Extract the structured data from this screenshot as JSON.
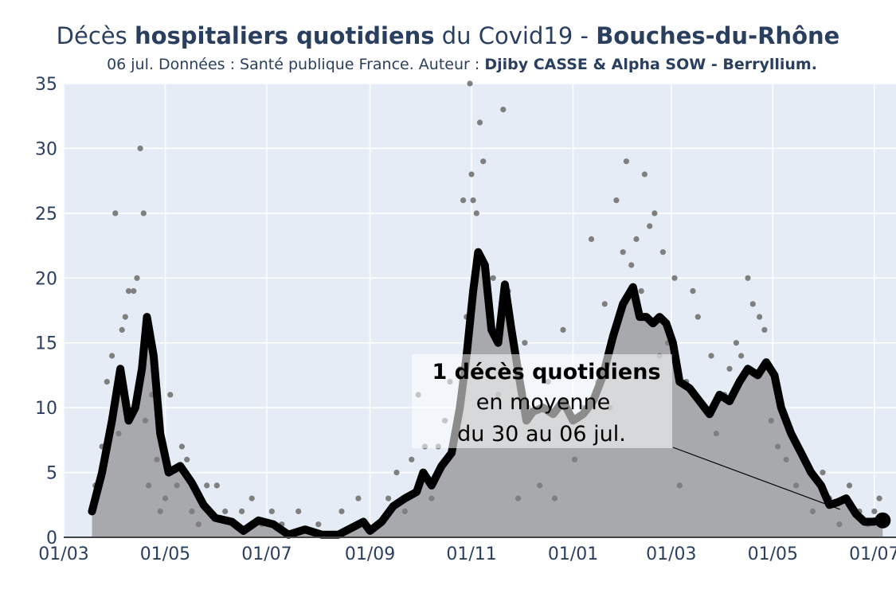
{
  "header": {
    "title_prefix": "Décès ",
    "title_bold": "hospitaliers quotidiens",
    "title_middle": " du Covid19 - ",
    "title_region": "Bouches-du-Rhône",
    "subtitle_text": "06 jul. Données : Santé publique France. Auteur : ",
    "subtitle_author": "Djiby CASSE & Alpha SOW - Berryllium."
  },
  "annotation": {
    "line1": "1 décès quotidiens",
    "line2": "en moyenne",
    "line3": "du 30 au 06 jul."
  },
  "colors": {
    "plot_bg": "#e5ecf6",
    "grid": "#ffffff",
    "area_fill": "#a7a9ad",
    "points": "#7f7f7f",
    "line": "#000000",
    "text": "#2a3f5f"
  },
  "chart_data": {
    "type": "line",
    "ylim": [
      0,
      35
    ],
    "y_ticks": [
      0,
      5,
      10,
      15,
      20,
      25,
      30,
      35
    ],
    "x_start": "2020-03-01",
    "x_end": "2021-07-14",
    "x_ticks": [
      {
        "date": "2020-03-01",
        "label": "01/03"
      },
      {
        "date": "2020-05-01",
        "label": "01/05"
      },
      {
        "date": "2020-07-01",
        "label": "01/07"
      },
      {
        "date": "2020-09-01",
        "label": "01/09"
      },
      {
        "date": "2020-11-01",
        "label": "01/11"
      },
      {
        "date": "2021-01-01",
        "label": "01/01"
      },
      {
        "date": "2021-03-01",
        "label": "01/03"
      },
      {
        "date": "2021-05-01",
        "label": "01/05"
      },
      {
        "date": "2021-07-01",
        "label": "01/07"
      }
    ],
    "series": [
      {
        "kind": "rolling_average_line",
        "points": [
          [
            "2020-03-18",
            2
          ],
          [
            "2020-03-24",
            5
          ],
          [
            "2020-03-30",
            9
          ],
          [
            "2020-04-04",
            13
          ],
          [
            "2020-04-09",
            9
          ],
          [
            "2020-04-13",
            10
          ],
          [
            "2020-04-17",
            13
          ],
          [
            "2020-04-20",
            17
          ],
          [
            "2020-04-24",
            14
          ],
          [
            "2020-04-28",
            8
          ],
          [
            "2020-05-03",
            5
          ],
          [
            "2020-05-10",
            5.5
          ],
          [
            "2020-05-17",
            4.2
          ],
          [
            "2020-05-24",
            2.5
          ],
          [
            "2020-05-31",
            1.5
          ],
          [
            "2020-06-10",
            1.2
          ],
          [
            "2020-06-17",
            0.5
          ],
          [
            "2020-06-26",
            1.3
          ],
          [
            "2020-07-05",
            1
          ],
          [
            "2020-07-14",
            0.2
          ],
          [
            "2020-07-24",
            0.6
          ],
          [
            "2020-08-03",
            0.2
          ],
          [
            "2020-08-13",
            0.2
          ],
          [
            "2020-08-22",
            0.8
          ],
          [
            "2020-08-28",
            1.2
          ],
          [
            "2020-09-01",
            0.5
          ],
          [
            "2020-09-08",
            1.2
          ],
          [
            "2020-09-15",
            2.4
          ],
          [
            "2020-09-22",
            3
          ],
          [
            "2020-09-29",
            3.5
          ],
          [
            "2020-10-03",
            5
          ],
          [
            "2020-10-08",
            4
          ],
          [
            "2020-10-14",
            5.5
          ],
          [
            "2020-10-20",
            6.5
          ],
          [
            "2020-10-25",
            10
          ],
          [
            "2020-10-29",
            14
          ],
          [
            "2020-11-02",
            19
          ],
          [
            "2020-11-05",
            22
          ],
          [
            "2020-11-09",
            21
          ],
          [
            "2020-11-13",
            16
          ],
          [
            "2020-11-17",
            15
          ],
          [
            "2020-11-21",
            19.5
          ],
          [
            "2020-11-25",
            16
          ],
          [
            "2020-11-30",
            12
          ],
          [
            "2020-12-04",
            9
          ],
          [
            "2020-12-08",
            9.7
          ],
          [
            "2020-12-14",
            10
          ],
          [
            "2020-12-20",
            9.5
          ],
          [
            "2020-12-26",
            10.5
          ],
          [
            "2021-01-01",
            9
          ],
          [
            "2021-01-07",
            9.5
          ],
          [
            "2021-01-13",
            10.5
          ],
          [
            "2021-01-19",
            12.5
          ],
          [
            "2021-01-25",
            15.5
          ],
          [
            "2021-01-31",
            18
          ],
          [
            "2021-02-06",
            19.3
          ],
          [
            "2021-02-10",
            17
          ],
          [
            "2021-02-14",
            17
          ],
          [
            "2021-02-18",
            16.5
          ],
          [
            "2021-02-22",
            17
          ],
          [
            "2021-02-26",
            16.5
          ],
          [
            "2021-03-02",
            15
          ],
          [
            "2021-03-06",
            12
          ],
          [
            "2021-03-12",
            11.5
          ],
          [
            "2021-03-18",
            10.5
          ],
          [
            "2021-03-24",
            9.5
          ],
          [
            "2021-03-30",
            11
          ],
          [
            "2021-04-05",
            10.5
          ],
          [
            "2021-04-11",
            12
          ],
          [
            "2021-04-16",
            13
          ],
          [
            "2021-04-22",
            12.5
          ],
          [
            "2021-04-27",
            13.5
          ],
          [
            "2021-05-02",
            12.5
          ],
          [
            "2021-05-06",
            10
          ],
          [
            "2021-05-12",
            8
          ],
          [
            "2021-05-18",
            6.5
          ],
          [
            "2021-05-24",
            5
          ],
          [
            "2021-05-30",
            4
          ],
          [
            "2021-06-04",
            2.5
          ],
          [
            "2021-06-09",
            2.7
          ],
          [
            "2021-06-14",
            3
          ],
          [
            "2021-06-20",
            1.8
          ],
          [
            "2021-06-25",
            1.2
          ],
          [
            "2021-06-30",
            1.2
          ],
          [
            "2021-07-06",
            1.3
          ]
        ]
      },
      {
        "kind": "daily_points",
        "points": [
          [
            "2020-03-20",
            4
          ],
          [
            "2020-03-24",
            7
          ],
          [
            "2020-03-27",
            12
          ],
          [
            "2020-03-30",
            14
          ],
          [
            "2020-04-01",
            25
          ],
          [
            "2020-04-03",
            8
          ],
          [
            "2020-04-05",
            16
          ],
          [
            "2020-04-07",
            17
          ],
          [
            "2020-04-09",
            19
          ],
          [
            "2020-04-12",
            19
          ],
          [
            "2020-04-14",
            20
          ],
          [
            "2020-04-16",
            30
          ],
          [
            "2020-04-18",
            25
          ],
          [
            "2020-04-19",
            9
          ],
          [
            "2020-04-21",
            4
          ],
          [
            "2020-04-23",
            11
          ],
          [
            "2020-04-26",
            6
          ],
          [
            "2020-04-28",
            2
          ],
          [
            "2020-05-01",
            3
          ],
          [
            "2020-05-04",
            11
          ],
          [
            "2020-05-08",
            4
          ],
          [
            "2020-05-11",
            7
          ],
          [
            "2020-05-14",
            6
          ],
          [
            "2020-05-17",
            2
          ],
          [
            "2020-05-21",
            1
          ],
          [
            "2020-05-26",
            4
          ],
          [
            "2020-06-01",
            4
          ],
          [
            "2020-06-06",
            2
          ],
          [
            "2020-06-11",
            1
          ],
          [
            "2020-06-16",
            2
          ],
          [
            "2020-06-22",
            3
          ],
          [
            "2020-06-28",
            1
          ],
          [
            "2020-07-04",
            2
          ],
          [
            "2020-07-10",
            1
          ],
          [
            "2020-07-20",
            2
          ],
          [
            "2020-08-01",
            1
          ],
          [
            "2020-08-15",
            2
          ],
          [
            "2020-08-25",
            3
          ],
          [
            "2020-09-05",
            1
          ],
          [
            "2020-09-12",
            3
          ],
          [
            "2020-09-17",
            5
          ],
          [
            "2020-09-22",
            2
          ],
          [
            "2020-09-26",
            6
          ],
          [
            "2020-09-30",
            11
          ],
          [
            "2020-10-04",
            7
          ],
          [
            "2020-10-08",
            3
          ],
          [
            "2020-10-12",
            7
          ],
          [
            "2020-10-16",
            9
          ],
          [
            "2020-10-19",
            12
          ],
          [
            "2020-10-22",
            8
          ],
          [
            "2020-10-25",
            13
          ],
          [
            "2020-10-27",
            26
          ],
          [
            "2020-10-29",
            17
          ],
          [
            "2020-10-31",
            35
          ],
          [
            "2020-11-01",
            28
          ],
          [
            "2020-11-02",
            26
          ],
          [
            "2020-11-04",
            25
          ],
          [
            "2020-11-06",
            32
          ],
          [
            "2020-11-08",
            29
          ],
          [
            "2020-11-11",
            18
          ],
          [
            "2020-11-14",
            20
          ],
          [
            "2020-11-17",
            11
          ],
          [
            "2020-11-20",
            33
          ],
          [
            "2020-11-23",
            19
          ],
          [
            "2020-11-26",
            15
          ],
          [
            "2020-11-29",
            3
          ],
          [
            "2020-12-03",
            15
          ],
          [
            "2020-12-05",
            10
          ],
          [
            "2020-12-08",
            8
          ],
          [
            "2020-12-12",
            4
          ],
          [
            "2020-12-17",
            12
          ],
          [
            "2020-12-21",
            3
          ],
          [
            "2020-12-26",
            16
          ],
          [
            "2021-01-02",
            6
          ],
          [
            "2021-01-07",
            10
          ],
          [
            "2021-01-12",
            23
          ],
          [
            "2021-01-16",
            12
          ],
          [
            "2021-01-20",
            18
          ],
          [
            "2021-01-23",
            10
          ],
          [
            "2021-01-27",
            26
          ],
          [
            "2021-01-31",
            22
          ],
          [
            "2021-02-02",
            29
          ],
          [
            "2021-02-05",
            21
          ],
          [
            "2021-02-08",
            23
          ],
          [
            "2021-02-11",
            19
          ],
          [
            "2021-02-13",
            28
          ],
          [
            "2021-02-16",
            24
          ],
          [
            "2021-02-19",
            25
          ],
          [
            "2021-02-22",
            14
          ],
          [
            "2021-02-24",
            22
          ],
          [
            "2021-02-27",
            15
          ],
          [
            "2021-03-03",
            20
          ],
          [
            "2021-03-06",
            4
          ],
          [
            "2021-03-10",
            12
          ],
          [
            "2021-03-14",
            19
          ],
          [
            "2021-03-17",
            17
          ],
          [
            "2021-03-21",
            10
          ],
          [
            "2021-03-25",
            14
          ],
          [
            "2021-03-28",
            8
          ],
          [
            "2021-04-02",
            11
          ],
          [
            "2021-04-05",
            13
          ],
          [
            "2021-04-09",
            15
          ],
          [
            "2021-04-12",
            14
          ],
          [
            "2021-04-16",
            20
          ],
          [
            "2021-04-19",
            18
          ],
          [
            "2021-04-23",
            17
          ],
          [
            "2021-04-26",
            16
          ],
          [
            "2021-04-30",
            9
          ],
          [
            "2021-05-04",
            7
          ],
          [
            "2021-05-09",
            6
          ],
          [
            "2021-05-15",
            4
          ],
          [
            "2021-05-20",
            6
          ],
          [
            "2021-05-25",
            2
          ],
          [
            "2021-05-31",
            5
          ],
          [
            "2021-06-04",
            3
          ],
          [
            "2021-06-10",
            1
          ],
          [
            "2021-06-16",
            4
          ],
          [
            "2021-06-22",
            2
          ],
          [
            "2021-06-27",
            1
          ],
          [
            "2021-07-01",
            2
          ],
          [
            "2021-07-04",
            3
          ],
          [
            "2021-07-06",
            1
          ]
        ]
      }
    ]
  }
}
